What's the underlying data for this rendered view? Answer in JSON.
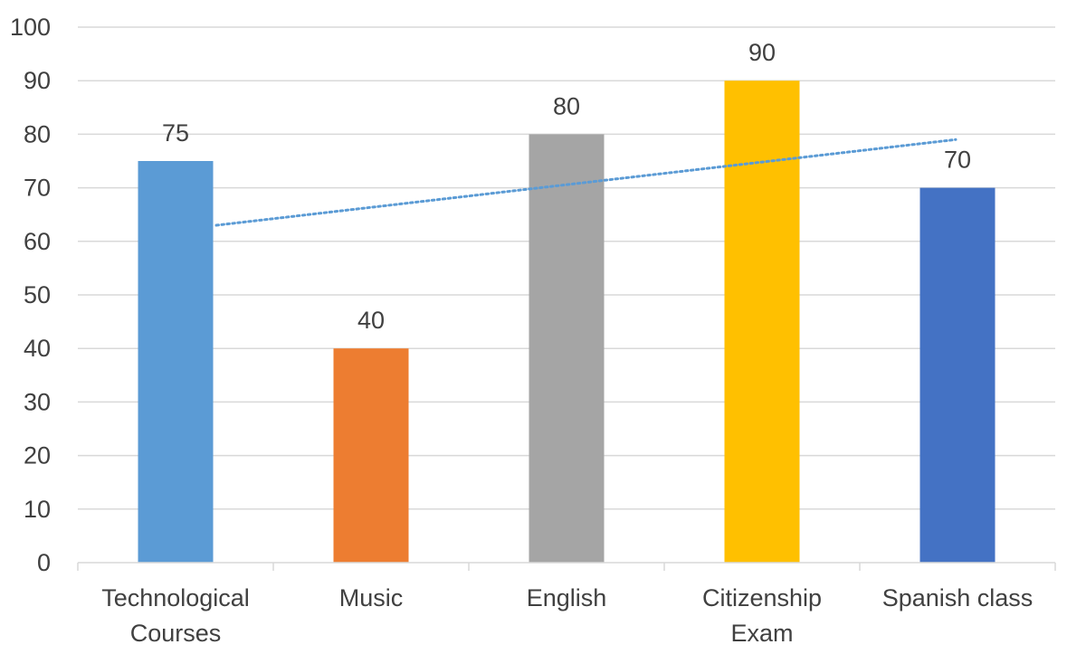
{
  "chart_data": {
    "type": "bar",
    "categories": [
      [
        "Technological",
        "Courses"
      ],
      [
        "Music"
      ],
      [
        "English"
      ],
      [
        "Citizenship",
        "Exam"
      ],
      [
        "Spanish class"
      ]
    ],
    "values": [
      75,
      40,
      80,
      90,
      70
    ],
    "data_labels": [
      "75",
      "40",
      "80",
      "90",
      "70"
    ],
    "colors": [
      "#5b9bd5",
      "#ed7d31",
      "#a5a5a5",
      "#ffc000",
      "#4472c4"
    ],
    "ylim": [
      0,
      100
    ],
    "yticks": [
      "0",
      "10",
      "20",
      "30",
      "40",
      "50",
      "60",
      "70",
      "80",
      "90",
      "100"
    ],
    "grid": true,
    "legend": "none",
    "trendline": {
      "type": "linear",
      "style": "dotted",
      "color": "#5b9bd5"
    },
    "title": "",
    "xlabel": "",
    "ylabel": ""
  }
}
